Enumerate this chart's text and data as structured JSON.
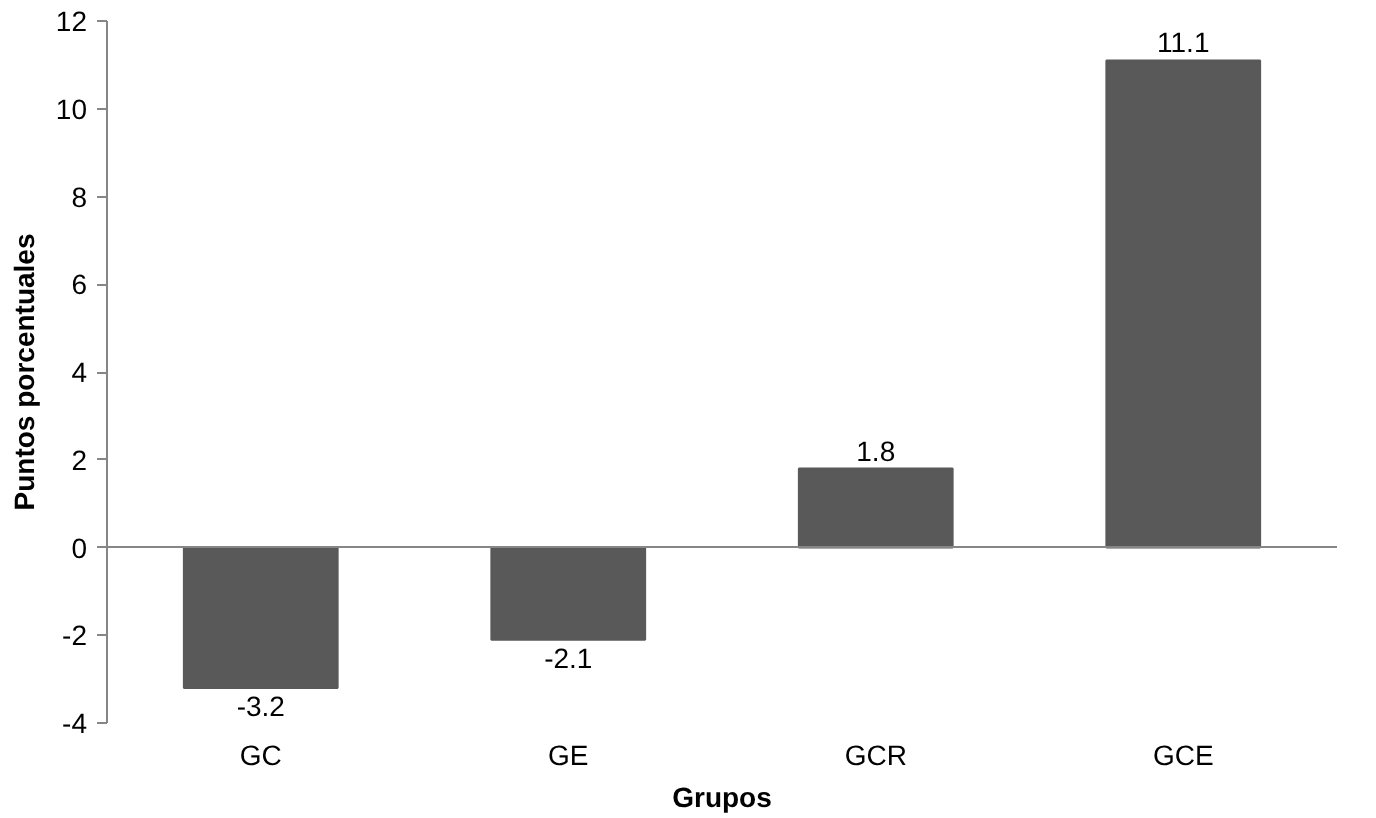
{
  "chart_data": {
    "type": "bar",
    "xlabel": "Grupos",
    "ylabel": "Puntos porcentuales",
    "categories": [
      "GC",
      "GE",
      "GCR",
      "GCE"
    ],
    "values": [
      -3.2,
      -2.1,
      1.8,
      11.1
    ],
    "color": "#595959",
    "ylim": [
      -4,
      12
    ],
    "yticks": [
      -4,
      -2,
      0,
      2,
      4,
      6,
      8,
      10,
      12
    ],
    "data_labels": true
  }
}
